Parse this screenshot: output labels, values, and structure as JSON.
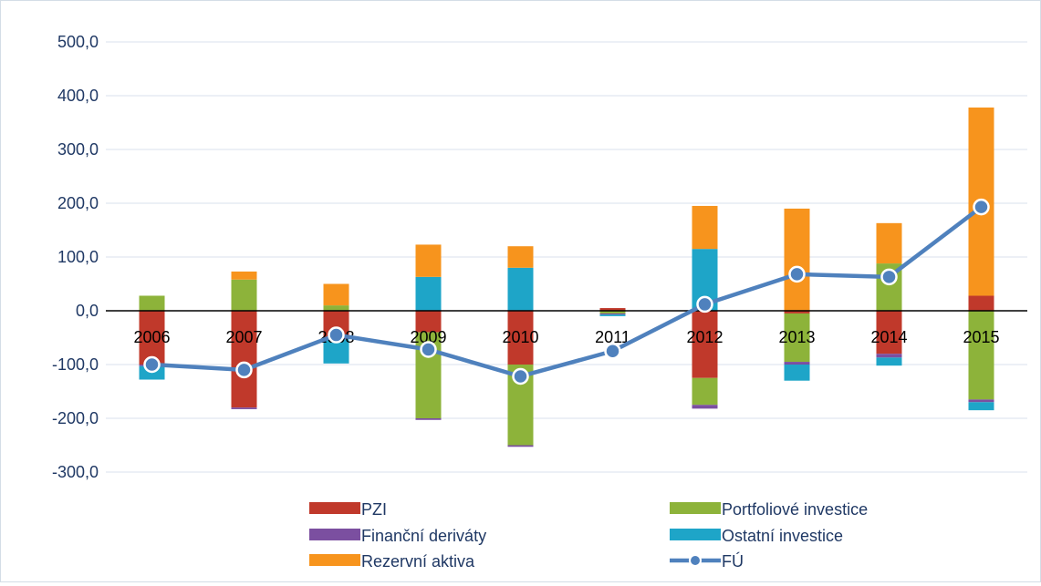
{
  "chart_data": {
    "type": "bar",
    "stacked": true,
    "title": "",
    "xlabel": "",
    "ylabel": "",
    "categories": [
      "2006",
      "2007",
      "2008",
      "2009",
      "2010",
      "2011",
      "2012",
      "2013",
      "2014",
      "2015"
    ],
    "ylim": [
      -300,
      500
    ],
    "yticks": [
      500,
      400,
      300,
      200,
      100,
      0,
      -100,
      -200,
      -300
    ],
    "ytick_labels": [
      "500,0",
      "400,0",
      "300,0",
      "200,0",
      "100,0",
      "0,0",
      "-100,0",
      "-200,0",
      "-300,0"
    ],
    "grid": true,
    "legend_position": "bottom",
    "series": [
      {
        "name": "PZI",
        "kind": "bar",
        "color": "#c0392b",
        "values": [
          -100,
          -180,
          -50,
          -40,
          -100,
          5,
          -125,
          -5,
          -80,
          28
        ]
      },
      {
        "name": "Portfoliové investice",
        "kind": "bar",
        "color": "#8db33a",
        "values": [
          28,
          58,
          10,
          -160,
          -150,
          -5,
          -50,
          -90,
          88,
          -165
        ]
      },
      {
        "name": "Finanční deriváty",
        "kind": "bar",
        "color": "#7b4fa0",
        "values": [
          -3,
          -3,
          -3,
          -3,
          -3,
          -2,
          -7,
          -5,
          -7,
          -5
        ]
      },
      {
        "name": "Ostatní investice",
        "kind": "bar",
        "color": "#1ea5c8",
        "values": [
          -25,
          0,
          -45,
          63,
          80,
          -3,
          115,
          -30,
          -15,
          -15
        ]
      },
      {
        "name": "Rezervní aktiva",
        "kind": "bar",
        "color": "#f7941d",
        "values": [
          0,
          15,
          40,
          60,
          40,
          0,
          80,
          190,
          75,
          350
        ]
      },
      {
        "name": "FÚ",
        "kind": "line",
        "color": "#4f81bd",
        "values": [
          -100,
          -110,
          -45,
          -72,
          -122,
          -75,
          12,
          68,
          63,
          193
        ]
      }
    ]
  }
}
